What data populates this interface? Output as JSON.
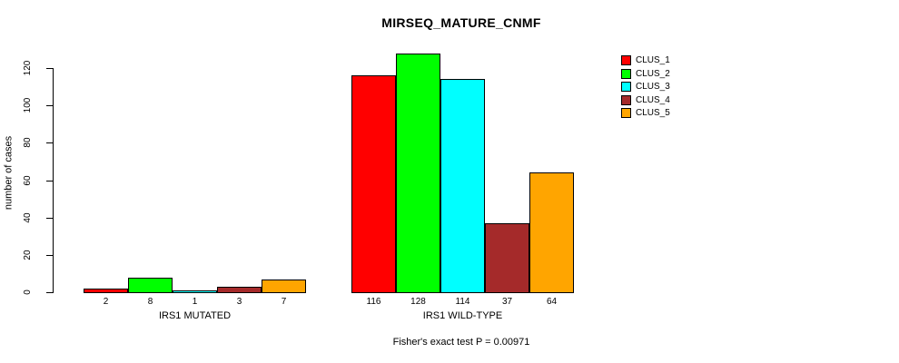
{
  "chart_data": {
    "type": "bar",
    "title": "MIRSEQ_MATURE_CNMF",
    "ylabel": "number of cases",
    "xlabel": "",
    "footer": "Fisher's exact test P = 0.00971",
    "categories": [
      "IRS1 MUTATED",
      "IRS1 WILD-TYPE"
    ],
    "series": [
      {
        "name": "CLUS_1",
        "color": "#FF0000",
        "values": [
          2,
          116
        ]
      },
      {
        "name": "CLUS_2",
        "color": "#00FF00",
        "values": [
          8,
          128
        ]
      },
      {
        "name": "CLUS_3",
        "color": "#00FFFF",
        "values": [
          1,
          114
        ]
      },
      {
        "name": "CLUS_4",
        "color": "#A52A2A",
        "values": [
          3,
          37
        ]
      },
      {
        "name": "CLUS_5",
        "color": "#FFA500",
        "values": [
          7,
          64
        ]
      }
    ],
    "y_ticks": [
      0,
      20,
      40,
      60,
      80,
      100,
      120
    ],
    "ylim": [
      0,
      120
    ],
    "grid": false,
    "bar_value_labels": true,
    "legend_position": "top-right"
  }
}
